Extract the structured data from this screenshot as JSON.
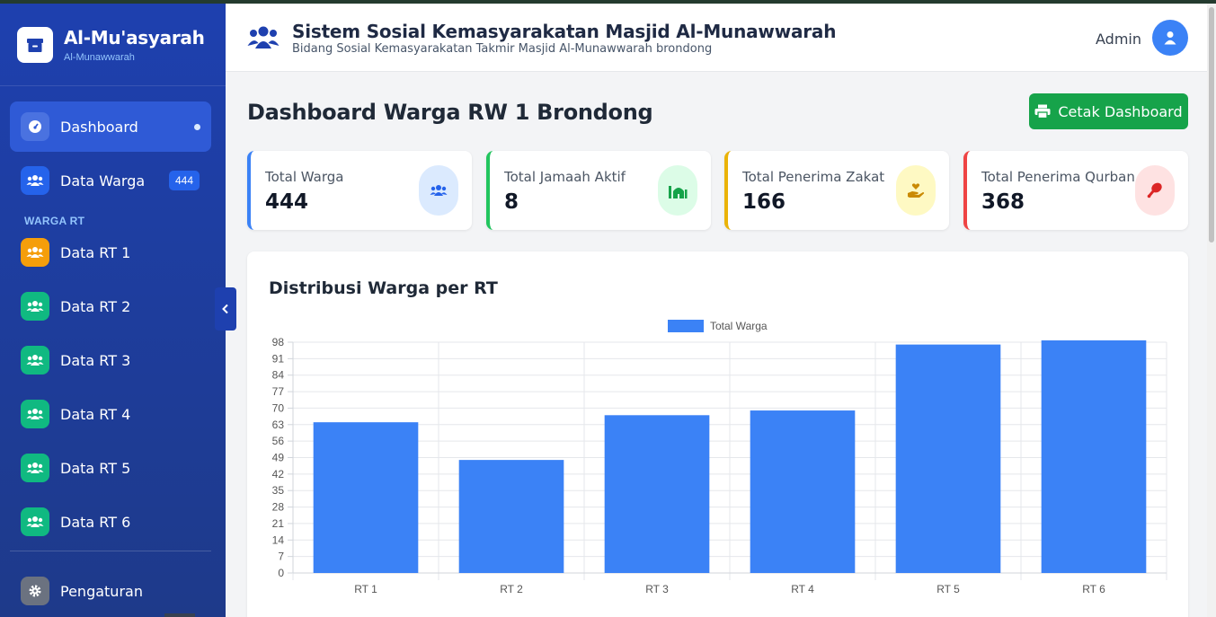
{
  "sidebar": {
    "brand_title": "Al-Mu'asyarah",
    "brand_sub": "Al-Munawwarah",
    "dashboard": "Dashboard",
    "data_warga": "Data Warga",
    "data_warga_badge": "444",
    "section_label": "WARGA RT",
    "rt_items": [
      "Data RT 1",
      "Data RT 2",
      "Data RT 3",
      "Data RT 4",
      "Data RT 5",
      "Data RT 6"
    ],
    "settings": "Pengaturan"
  },
  "header": {
    "title": "Sistem Sosial Kemasyarakatan Masjid Al-Munawwarah",
    "subtitle": "Bidang Sosial Kemasyarakatan Takmir Masjid Al-Munawwarah brondong",
    "user": "Admin"
  },
  "page": {
    "title": "Dashboard Warga RW 1 Brondong",
    "print_button": "Cetak Dashboard"
  },
  "stats": [
    {
      "label": "Total Warga",
      "value": "444",
      "accent": "#3b82f6",
      "icon": "users-icon"
    },
    {
      "label": "Total Jamaah Aktif",
      "value": "8",
      "accent": "#22c55e",
      "icon": "mosque-icon"
    },
    {
      "label": "Total Penerima Zakat",
      "value": "166",
      "accent": "#eab308",
      "icon": "hand-holding-heart-icon"
    },
    {
      "label": "Total Penerima Qurban",
      "value": "368",
      "accent": "#ef4444",
      "icon": "drumstick-icon"
    }
  ],
  "chart_title": "Distribusi Warga per RT",
  "chart_data": {
    "type": "bar",
    "categories": [
      "RT 1",
      "RT 2",
      "RT 3",
      "RT 4",
      "RT 5",
      "RT 6"
    ],
    "series": [
      {
        "name": "Total Warga",
        "values": [
          64,
          48,
          67,
          69,
          97,
          99
        ]
      }
    ],
    "ylim": [
      0,
      98
    ],
    "yticks": [
      0,
      7,
      14,
      21,
      28,
      35,
      42,
      49,
      56,
      63,
      70,
      77,
      84,
      91,
      98
    ],
    "legend": "top",
    "grid": true,
    "color": "#3b82f6"
  },
  "colors": {
    "sidebar": "#1e40af",
    "primary": "#3b82f6",
    "success": "#16a34a"
  }
}
